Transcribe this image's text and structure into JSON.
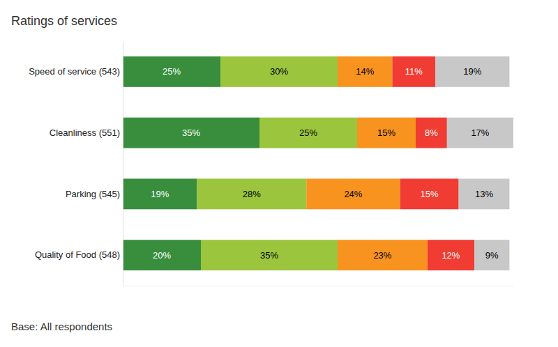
{
  "chart_data": {
    "type": "bar",
    "orientation": "horizontal",
    "stacked": true,
    "title": "Ratings of services",
    "annotations": [
      "Base: All respondents"
    ],
    "categories": [
      "Speed of service (543)",
      "Cleanliness (551)",
      "Parking (545)",
      "Quality of Food (548)"
    ],
    "xlim": [
      0,
      100
    ],
    "tick_labels": "y",
    "data_labels": true,
    "series": [
      {
        "color": "#388e3c",
        "values": [
          25,
          35,
          19,
          20
        ],
        "value_labels": [
          "25%",
          "35%",
          "19%",
          "20%"
        ]
      },
      {
        "color": "#9bc53d",
        "values": [
          30,
          25,
          28,
          35
        ],
        "value_labels": [
          "30%",
          "25%",
          "28%",
          "35%"
        ]
      },
      {
        "color": "#f7931e",
        "values": [
          14,
          15,
          24,
          23
        ],
        "value_labels": [
          "14%",
          "15%",
          "24%",
          "23%"
        ]
      },
      {
        "color": "#f03c32",
        "values": [
          11,
          8,
          15,
          12
        ],
        "value_labels": [
          "11%",
          "8%",
          "15%",
          "12%"
        ]
      },
      {
        "color": "#c8c8c8",
        "values": [
          19,
          17,
          13,
          9
        ],
        "value_labels": [
          "19%",
          "17%",
          "13%",
          "9%"
        ]
      }
    ]
  }
}
